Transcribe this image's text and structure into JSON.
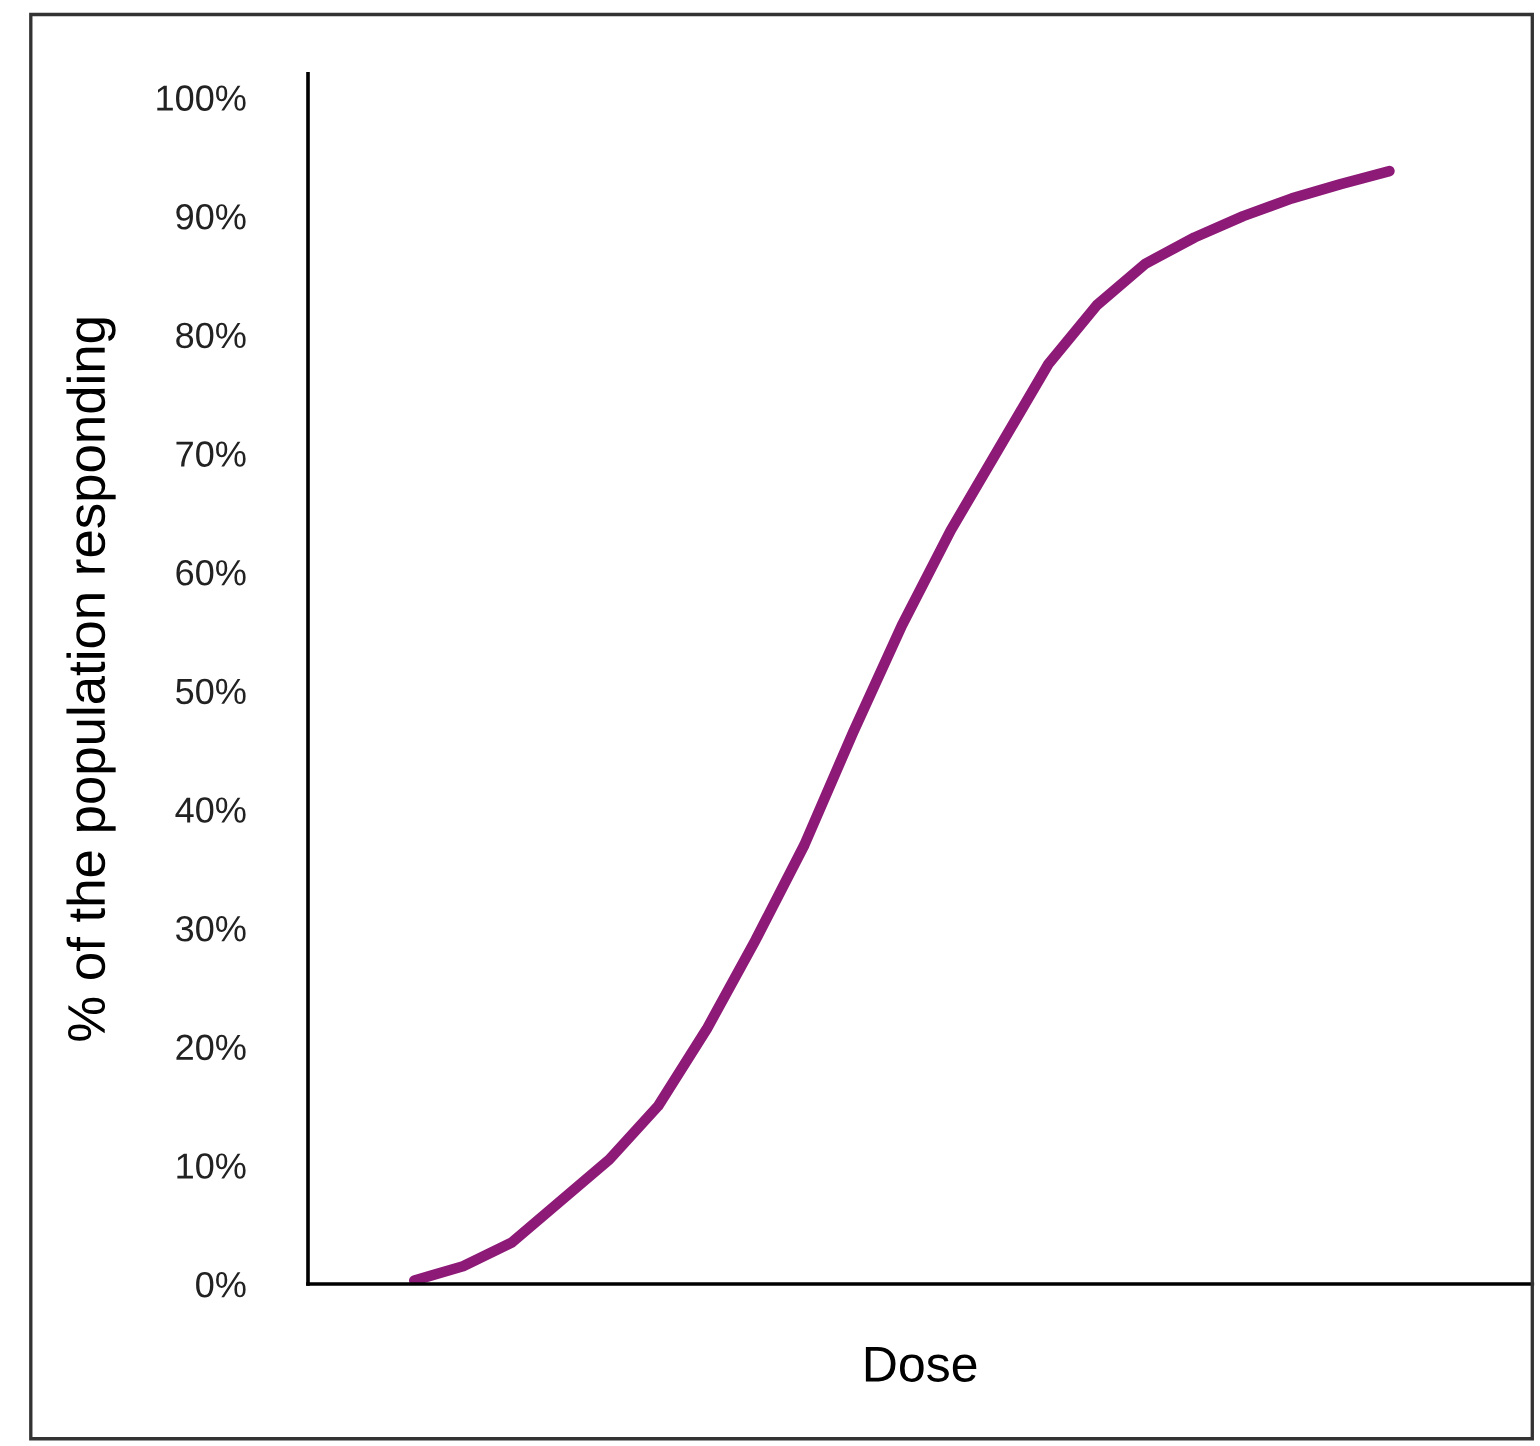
{
  "chart_data": {
    "type": "line",
    "xlabel": "Dose",
    "ylabel": "% of the population responding",
    "categories": [
      null,
      null,
      null,
      null,
      null,
      null,
      null,
      null,
      null,
      null,
      null,
      null,
      null,
      null,
      null,
      null,
      null,
      null,
      null,
      null,
      null
    ],
    "series": [
      {
        "color": "#8e1a78",
        "values": [
          0.3,
          1.5,
          3.5,
          7,
          10.5,
          15,
          21.5,
          29,
          37,
          46.5,
          55.5,
          63.5,
          70.5,
          77.5,
          82.5,
          86,
          88.2,
          90,
          91.5,
          92.7,
          93.8
        ]
      }
    ],
    "ylim": [
      0,
      102
    ],
    "yticks": [
      {
        "value": 0,
        "label": "0%"
      },
      {
        "value": 10,
        "label": "10%"
      },
      {
        "value": 20,
        "label": "20%"
      },
      {
        "value": 30,
        "label": "30%"
      },
      {
        "value": 40,
        "label": "40%"
      },
      {
        "value": 50,
        "label": "50%"
      },
      {
        "value": 60,
        "label": "60%"
      },
      {
        "value": 70,
        "label": "70%"
      },
      {
        "value": 80,
        "label": "80%"
      },
      {
        "value": 90,
        "label": "90%"
      },
      {
        "value": 100,
        "label": "100%"
      }
    ],
    "tick_labels": "y",
    "grid": false,
    "legend": false,
    "marker": "none",
    "line_style": "solid"
  }
}
